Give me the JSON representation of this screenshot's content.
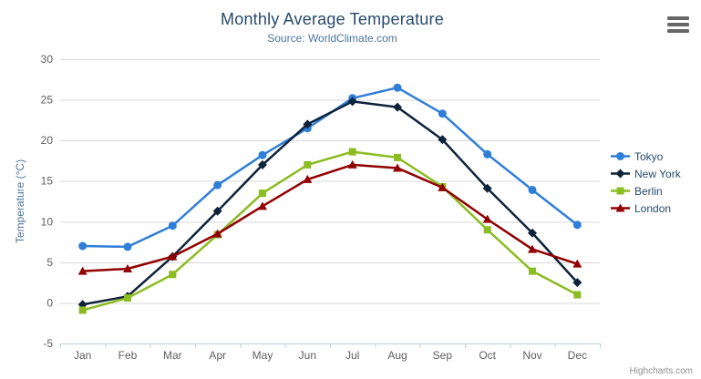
{
  "chart_data": {
    "type": "line",
    "title": "Monthly Average Temperature",
    "subtitle": "Source: WorldClimate.com",
    "xlabel": "",
    "ylabel": "Temperature (°C)",
    "ylim": [
      -5,
      30
    ],
    "ytick_step": 5,
    "grid": true,
    "legend_position": "right",
    "categories": [
      "Jan",
      "Feb",
      "Mar",
      "Apr",
      "May",
      "Jun",
      "Jul",
      "Aug",
      "Sep",
      "Oct",
      "Nov",
      "Dec"
    ],
    "series": [
      {
        "name": "Tokyo",
        "color": "#2f7ed8",
        "marker": "circle",
        "values": [
          7.0,
          6.9,
          9.5,
          14.5,
          18.2,
          21.5,
          25.2,
          26.5,
          23.3,
          18.3,
          13.9,
          9.6
        ]
      },
      {
        "name": "New York",
        "color": "#0d233a",
        "marker": "diamond",
        "values": [
          -0.2,
          0.8,
          5.7,
          11.3,
          17.0,
          22.0,
          24.8,
          24.1,
          20.1,
          14.1,
          8.6,
          2.5
        ]
      },
      {
        "name": "Berlin",
        "color": "#8bbc21",
        "marker": "square",
        "values": [
          -0.9,
          0.6,
          3.5,
          8.4,
          13.5,
          17.0,
          18.6,
          17.9,
          14.3,
          9.0,
          3.9,
          1.0
        ]
      },
      {
        "name": "London",
        "color": "#910000",
        "marker": "triangle",
        "values": [
          3.9,
          4.2,
          5.7,
          8.5,
          11.9,
          15.2,
          17.0,
          16.6,
          14.2,
          10.3,
          6.6,
          4.8
        ]
      }
    ]
  },
  "palette": {
    "title_color": "#274b6d",
    "subtitle_color": "#4d759e",
    "axis_title_color": "#4d759e",
    "tick_label_color": "#606060",
    "grid_color": "#d8d8d8",
    "axis_line_color": "#c0d0e0",
    "legend_text_color": "#274b6d",
    "credits_color": "#909090",
    "export_icon_color": "#666666"
  },
  "credits": {
    "label": "Highcharts.com"
  },
  "export_menu": {
    "icon": "hamburger-icon"
  }
}
